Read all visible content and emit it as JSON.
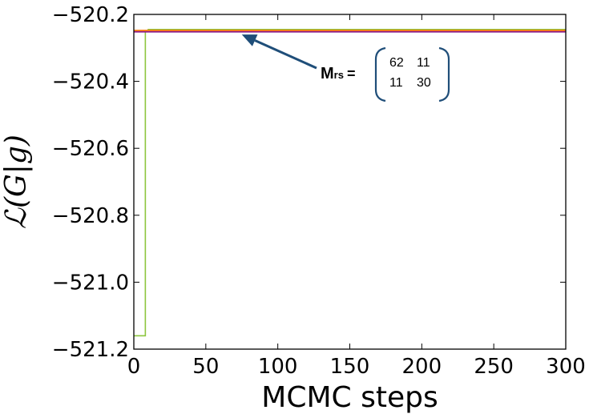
{
  "chart_data": {
    "type": "line",
    "title": "",
    "xlabel": "MCMC steps",
    "ylabel": "ℒ(G|g)",
    "xlim": [
      0,
      300
    ],
    "ylim": [
      -521.2,
      -520.2
    ],
    "xticks": [
      0,
      50,
      100,
      150,
      200,
      250,
      300
    ],
    "xtick_labels": [
      "0",
      "50",
      "100",
      "150",
      "200",
      "250",
      "300"
    ],
    "yticks": [
      -520.2,
      -520.4,
      -520.6,
      -520.8,
      -521.0,
      -521.2
    ],
    "ytick_labels": [
      "−520.2",
      "−520.4",
      "−520.6",
      "−520.8",
      "−521.0",
      "−521.2"
    ],
    "grid": false,
    "series": [
      {
        "color": "#8dc63f",
        "x": [
          0,
          8,
          8,
          10,
          10,
          300
        ],
        "y": [
          -521.16,
          -521.16,
          -520.25,
          -520.25,
          -520.245,
          -520.245
        ]
      },
      {
        "color": "#ff7f0e",
        "x": [
          0,
          300
        ],
        "y": [
          -520.248,
          -520.248
        ]
      },
      {
        "color": "#8b1a89",
        "x": [
          0,
          300
        ],
        "y": [
          -520.252,
          -520.252
        ]
      }
    ],
    "annotation": {
      "label_main": "M",
      "label_sub": "rs",
      "equals": "=",
      "matrix": [
        [
          "62",
          "11"
        ],
        [
          "11",
          "30"
        ]
      ],
      "arrow_color": "#1f4e79",
      "bracket_color": "#1f4e79",
      "arrow_target": {
        "x": 75,
        "y": -520.26
      }
    }
  }
}
